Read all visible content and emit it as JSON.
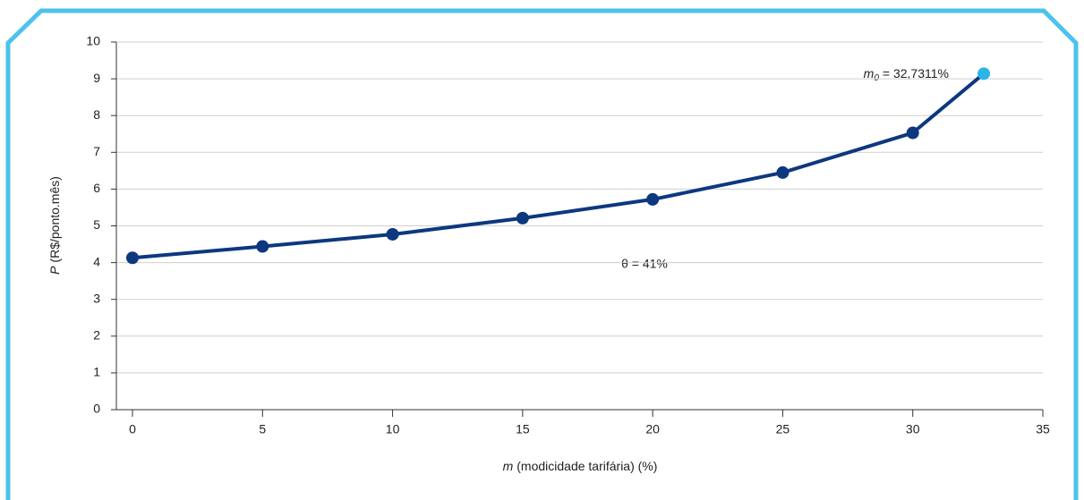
{
  "chart_data": {
    "type": "line",
    "x": [
      0,
      5,
      10,
      15,
      20,
      25,
      30,
      32.7311
    ],
    "series": [
      {
        "color": "#0d3880",
        "values": [
          4.13,
          4.44,
          4.77,
          5.21,
          5.72,
          6.45,
          7.53,
          9.14
        ],
        "marker_colors": [
          "#0d3880",
          "#0d3880",
          "#0d3880",
          "#0d3880",
          "#0d3880",
          "#0d3880",
          "#0d3880",
          "#2bb5e6"
        ]
      }
    ],
    "xlim": [
      0,
      35
    ],
    "xticks": [
      0,
      5,
      10,
      15,
      20,
      25,
      30,
      35
    ],
    "ylim": [
      0,
      10
    ],
    "yticks": [
      0,
      1,
      2,
      3,
      4,
      5,
      6,
      7,
      8,
      9,
      10
    ],
    "grid": true,
    "xlabel": {
      "var": "m",
      "text": "(modicidade tarifária) (%)"
    },
    "ylabel": {
      "var": "P",
      "text": "(R$/ponto.mês)"
    },
    "annotations": [
      {
        "var": "m",
        "sub": "0",
        "text": "= 32,7311%"
      },
      {
        "text": "θ = 41%"
      }
    ]
  }
}
